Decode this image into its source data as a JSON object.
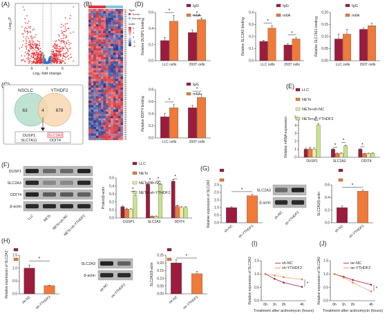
{
  "panel_letters": [
    "(A)",
    "(B)",
    "(C)",
    "(D)",
    "(E)",
    "(F)",
    "(G)",
    "(H)",
    "(I)",
    "(J)"
  ],
  "colors": {
    "igg": "#9b1c3c",
    "m6a": "#f07a3a",
    "llc": "#9b1c3c",
    "nets": "#f07a3a",
    "nets_shnc": "#f7e7a6",
    "nets_shy": "#c8e58a",
    "blue": "#3a6fc9",
    "red": "#e8282b",
    "venn_left": "#bfe3d0",
    "venn_right": "#f8d7b0",
    "heat_hi": "#d9363e",
    "heat_lo": "#2b3a8f"
  },
  "volcano": {
    "ylabel": "−Log₁₀P",
    "xlabel": "Log₂ fold change",
    "xticks": [
      "-5",
      "0",
      "5"
    ]
  },
  "heatmap": {
    "legend_titles": [
      "Type",
      "Tumor",
      "Normal"
    ],
    "scale_title": "scale",
    "scale_ticks": [
      "4",
      "2",
      "0",
      "-2",
      "-4"
    ]
  },
  "venn": {
    "left_label": "NSCLC",
    "right_label": "YTHDF2",
    "left_only": "63",
    "overlap": "4",
    "right_only": "678",
    "genes": [
      "DUSP1",
      "SLC2A3",
      "SLC7A11",
      "DDIT4"
    ]
  },
  "western_f": {
    "rows": [
      "DUSP1",
      "SLC2A3",
      "DDIT4",
      "β-actin"
    ],
    "lanes": [
      "LLC",
      "NETs",
      "NETs+sh-NC",
      "NETs+sh-YTHDF2"
    ]
  },
  "western_g": {
    "rows": [
      "SLC2A3",
      "β-actin"
    ],
    "lanes": [
      "sh-NC",
      "sh-YTHDF2"
    ]
  },
  "western_h": {
    "rows": [
      "SLC2A3",
      "β-actin"
    ],
    "lanes": [
      "oe-NC",
      "oe-YTHDF2"
    ]
  },
  "star": "*",
  "chart_data": [
    {
      "id": "D1",
      "type": "bar",
      "ylabel": "Relative DUSP1 binding",
      "categories": [
        "LLC cells",
        "293T cells"
      ],
      "series": [
        {
          "name": "IgG",
          "values": [
            0.25,
            0.35
          ]
        },
        {
          "name": "m6A",
          "values": [
            0.49,
            0.51
          ]
        }
      ],
      "errors": [
        [
          0.04,
          0.03
        ],
        [
          0.07,
          0.02
        ]
      ],
      "ylim": [
        0,
        0.6
      ],
      "yticks": [
        "0.0",
        "0.2",
        "0.4",
        "0.6"
      ]
    },
    {
      "id": "D2",
      "type": "bar",
      "ylabel": "Relative SLC2A3 binding",
      "categories": [
        "LLC cells",
        "293T cells"
      ],
      "series": [
        {
          "name": "IgG",
          "values": [
            0.16,
            0.13
          ]
        },
        {
          "name": "m6A",
          "values": [
            0.27,
            0.18
          ]
        }
      ],
      "errors": [
        [
          0.01,
          0.01
        ],
        [
          0.02,
          0.01
        ]
      ],
      "ylim": [
        0,
        0.4
      ],
      "yticks": [
        "0.0",
        "0.1",
        "0.2",
        "0.3",
        "0.4"
      ]
    },
    {
      "id": "D3",
      "type": "bar",
      "ylabel": "Relative SLC7A11 binding",
      "categories": [
        "LLC cells",
        "293T cells"
      ],
      "series": [
        {
          "name": "IgG",
          "values": [
            0.09,
            0.13
          ]
        },
        {
          "name": "m6A",
          "values": [
            0.11,
            0.145
          ]
        }
      ],
      "errors": [
        [
          0.02,
          0.005
        ],
        [
          0.02,
          0.01
        ]
      ],
      "ylim": [
        0,
        0.2
      ],
      "yticks": [
        "0.00",
        "0.05",
        "0.10",
        "0.15",
        "0.20"
      ]
    },
    {
      "id": "D4",
      "type": "bar",
      "ylabel": "Relative DDIT4 binding",
      "categories": [
        "LLC cells",
        "293T cells"
      ],
      "series": [
        {
          "name": "IgG",
          "values": [
            0.35,
            0.5
          ]
        },
        {
          "name": "m6A",
          "values": [
            0.5,
            0.67
          ]
        }
      ],
      "errors": [
        [
          0.06,
          0.04
        ],
        [
          0.05,
          0.06
        ]
      ],
      "ylim": [
        0,
        0.8
      ],
      "yticks": [
        "0.0",
        "0.2",
        "0.4",
        "0.6",
        "0.8"
      ]
    },
    {
      "id": "E",
      "type": "bar",
      "ylabel": "Relative mRNA expression",
      "categories": [
        "DUSP1",
        "SLC2A3",
        "DDIT4"
      ],
      "series": [
        {
          "name": "LLC",
          "values": [
            1.0,
            1.0,
            1.0
          ]
        },
        {
          "name": "NETs",
          "values": [
            1.05,
            0.48,
            0.45
          ]
        },
        {
          "name": "NETs+sh-NC",
          "values": [
            1.0,
            0.5,
            0.47
          ]
        },
        {
          "name": "NETs+sh-YTHDF2",
          "values": [
            4.0,
            1.4,
            0.5
          ]
        }
      ],
      "errors": [
        [
          0.15,
          0.08,
          0.06
        ],
        [
          0.2,
          0.05,
          0.05
        ],
        [
          0.15,
          0.05,
          0.05
        ],
        [
          0.2,
          0.1,
          0.05
        ]
      ],
      "ylim": [
        0,
        5
      ],
      "yticks": [
        "0",
        "1",
        "2",
        "3",
        "4",
        "5"
      ]
    },
    {
      "id": "F",
      "type": "bar",
      "ylabel": "Protein/β-actin",
      "categories": [
        "DUSP1",
        "SLC2A3",
        "DDIT4"
      ],
      "series": [
        {
          "name": "LLC",
          "values": [
            0.14,
            0.42,
            0.46
          ]
        },
        {
          "name": "NETs",
          "values": [
            0.11,
            0.02,
            0.15
          ]
        },
        {
          "name": "NETs+sh-NC",
          "values": [
            0.11,
            0.02,
            0.13
          ]
        },
        {
          "name": "NETs+sh-YTHDF2",
          "values": [
            0.28,
            0.42,
            0.13
          ]
        }
      ],
      "errors": [
        [
          0.01,
          0.01,
          0.02
        ],
        [
          0.01,
          0.005,
          0.01
        ],
        [
          0.01,
          0.005,
          0.01
        ],
        [
          0.03,
          0.01,
          0.01
        ]
      ],
      "ylim": [
        0,
        0.5
      ],
      "yticks": [
        "0.0",
        "0.1",
        "0.2",
        "0.3",
        "0.4",
        "0.5"
      ]
    },
    {
      "id": "G1",
      "type": "bar",
      "ylabel": "Relative expression of SLC2A3",
      "categories": [
        "sh-NC",
        "sh-YTHDF2"
      ],
      "values": [
        1.0,
        1.78
      ],
      "errors": [
        0.05,
        0.1
      ],
      "ylim": [
        0,
        2.5
      ],
      "yticks": [
        "0.0",
        "0.5",
        "1.0",
        "1.5",
        "2.0",
        "2.5"
      ]
    },
    {
      "id": "G2",
      "type": "bar",
      "ylabel": "SLC2A3/β-actin",
      "categories": [
        "sh-NC",
        "sh-YTHDF2"
      ],
      "values": [
        0.24,
        0.5
      ],
      "errors": [
        0.03,
        0.02
      ],
      "ylim": [
        0,
        0.6
      ],
      "yticks": [
        "0.0",
        "0.2",
        "0.4",
        "0.6"
      ]
    },
    {
      "id": "H1",
      "type": "bar",
      "ylabel": "Relative expression of SLC2A3",
      "categories": [
        "oe-NC",
        "oe-YTHDF2"
      ],
      "values": [
        1.0,
        0.32
      ],
      "errors": [
        0.12,
        0.02
      ],
      "ylim": [
        0,
        1.5
      ],
      "yticks": [
        "0.0",
        "0.5",
        "1.0",
        "1.5"
      ]
    },
    {
      "id": "H2",
      "type": "bar",
      "ylabel": "SLC2A3/β-actin",
      "categories": [
        "oe-NC",
        "oe-YTHDF2"
      ],
      "values": [
        0.2,
        0.13
      ],
      "errors": [
        0.02,
        0.015
      ],
      "ylim": [
        0,
        0.25
      ],
      "yticks": [
        "0.00",
        "0.05",
        "0.10",
        "0.15",
        "0.20",
        "0.25"
      ]
    },
    {
      "id": "I",
      "type": "line",
      "ylabel": "Relative expression of SLC2A3",
      "xlabel": "Treatment after actinomycin (hours)",
      "x": [
        "0h",
        "1h",
        "2h",
        "4h"
      ],
      "series": [
        {
          "name": "sh-NC",
          "values": [
            1.0,
            0.82,
            0.68,
            0.52
          ]
        },
        {
          "name": "sh-YTHDF2",
          "values": [
            1.0,
            0.95,
            0.88,
            0.8
          ]
        }
      ],
      "ylim": [
        0,
        1.5
      ],
      "yticks": [
        "0.0",
        "0.5",
        "1.0",
        "1.5"
      ]
    },
    {
      "id": "J",
      "type": "line",
      "ylabel": "Relative expression of SLC2A3",
      "xlabel": "Treatment after actinomycin (hours)",
      "x": [
        "0h",
        "1h",
        "2h",
        "4h"
      ],
      "series": [
        {
          "name": "oe-NC",
          "values": [
            1.0,
            0.9,
            0.78,
            0.6
          ]
        },
        {
          "name": "oe-YTHDF2",
          "values": [
            1.0,
            0.87,
            0.68,
            0.35
          ]
        }
      ],
      "ylim": [
        0,
        1.5
      ],
      "yticks": [
        "0.0",
        "0.5",
        "1.0",
        "1.5"
      ]
    }
  ]
}
